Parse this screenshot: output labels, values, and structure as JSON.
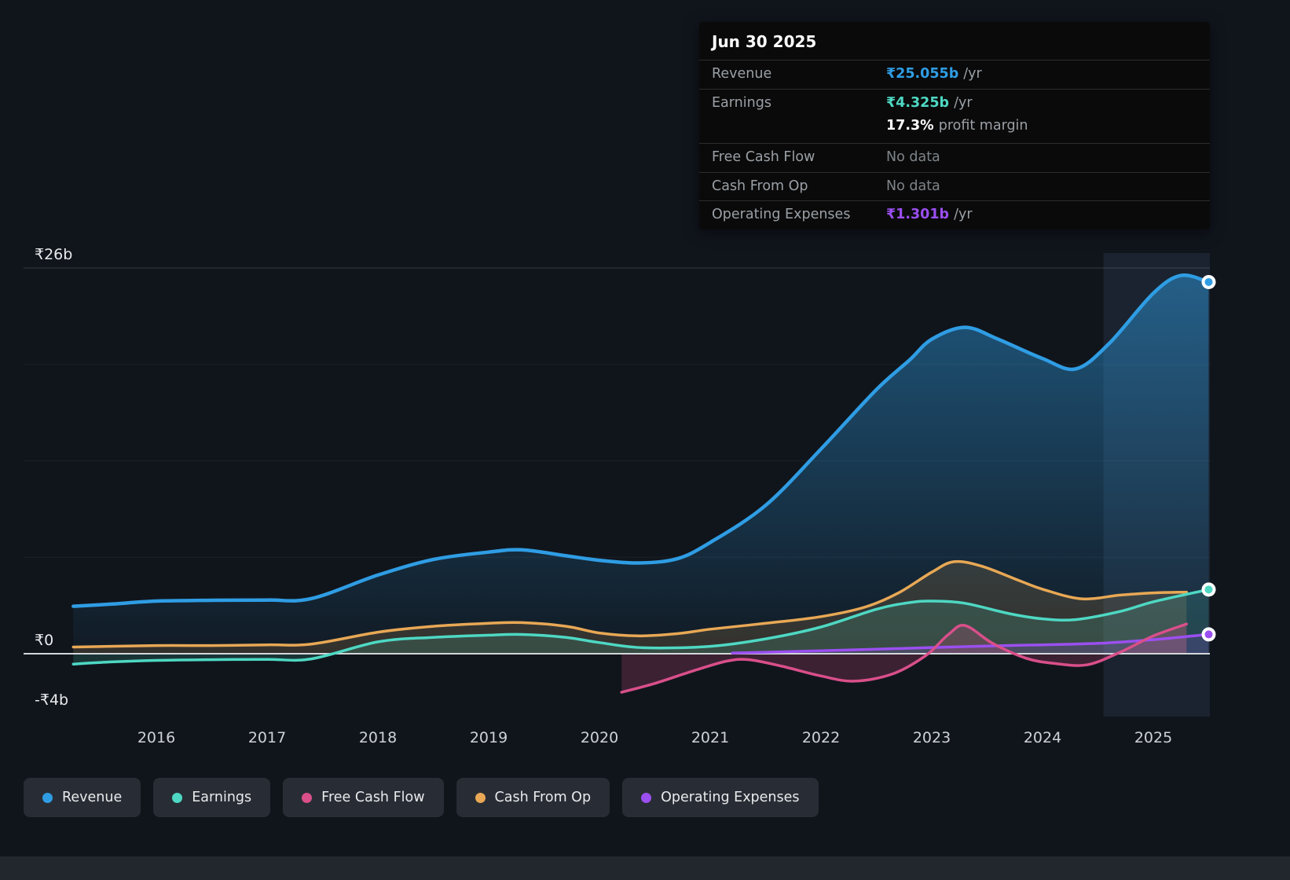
{
  "colors": {
    "revenue": "#2f9de4",
    "earnings": "#4ed8c3",
    "free_cash_flow": "#d94f8a",
    "cash_from_op": "#e8a855",
    "operating_expenses": "#9b4ff0",
    "white": "#ffffff",
    "muted": "#7e848a",
    "background": "#10151c",
    "zero_line": "#d2d6da",
    "grid_line": "rgba(255,255,255,0.16)"
  },
  "tooltip": {
    "date": "Jun 30 2025",
    "rows": [
      {
        "label": "Revenue",
        "value": "₹25.055b",
        "unit": "/yr",
        "color_key": "revenue",
        "sub": false
      },
      {
        "label": "Earnings",
        "value": "₹4.325b",
        "unit": "/yr",
        "color_key": "earnings",
        "sub": false
      },
      {
        "label": "",
        "value": "17.3%",
        "unit": "profit margin",
        "color_key": "white",
        "sub": true
      },
      {
        "label": "Free Cash Flow",
        "value": "No data",
        "unit": "",
        "color_key": "muted",
        "sub": false
      },
      {
        "label": "Cash From Op",
        "value": "No data",
        "unit": "",
        "color_key": "muted",
        "sub": false
      },
      {
        "label": "Operating Expenses",
        "value": "₹1.301b",
        "unit": "/yr",
        "color_key": "operating_expenses",
        "sub": false
      }
    ]
  },
  "legend": [
    {
      "label": "Revenue",
      "color_key": "revenue"
    },
    {
      "label": "Earnings",
      "color_key": "earnings"
    },
    {
      "label": "Free Cash Flow",
      "color_key": "free_cash_flow"
    },
    {
      "label": "Cash From Op",
      "color_key": "cash_from_op"
    },
    {
      "label": "Operating Expenses",
      "color_key": "operating_expenses"
    }
  ],
  "chart_data": {
    "type": "line",
    "title": "",
    "xlabel": "",
    "ylabel": "",
    "currency": "₹",
    "legend_position": "bottom",
    "grid": "horizontal",
    "x_ticks": [
      2016,
      2017,
      2018,
      2019,
      2020,
      2021,
      2022,
      2023,
      2024,
      2025
    ],
    "y_labels": [
      {
        "text": "₹26b",
        "value": 26
      },
      {
        "text": "₹0",
        "value": 0
      },
      {
        "text": "-₹4b",
        "value": -4
      }
    ],
    "y_gridlines_faint": [
      19.5,
      13,
      6.5
    ],
    "ylim": [
      -4.4,
      27.0
    ],
    "xlim": [
      2015.2,
      2025.55
    ],
    "forecast_band_start": 2024.55,
    "series": [
      {
        "name": "Revenue",
        "color_key": "revenue",
        "end_marker": true,
        "unit": "billions ₹/yr",
        "points": [
          [
            2015.25,
            3.2
          ],
          [
            2015.6,
            3.35
          ],
          [
            2016,
            3.55
          ],
          [
            2016.5,
            3.6
          ],
          [
            2017,
            3.62
          ],
          [
            2017.4,
            3.72
          ],
          [
            2018,
            5.3
          ],
          [
            2018.5,
            6.35
          ],
          [
            2019,
            6.85
          ],
          [
            2019.3,
            7.0
          ],
          [
            2019.7,
            6.6
          ],
          [
            2020,
            6.3
          ],
          [
            2020.35,
            6.12
          ],
          [
            2020.7,
            6.4
          ],
          [
            2021,
            7.5
          ],
          [
            2021.5,
            10.0
          ],
          [
            2022,
            13.8
          ],
          [
            2022.5,
            17.8
          ],
          [
            2022.8,
            19.8
          ],
          [
            2023,
            21.2
          ],
          [
            2023.3,
            22.0
          ],
          [
            2023.6,
            21.2
          ],
          [
            2024,
            19.9
          ],
          [
            2024.3,
            19.2
          ],
          [
            2024.6,
            20.9
          ],
          [
            2025,
            24.3
          ],
          [
            2025.25,
            25.5
          ],
          [
            2025.5,
            25.055
          ]
        ]
      },
      {
        "name": "Cash From Op",
        "color_key": "cash_from_op",
        "end_marker": false,
        "unit": "billions ₹/yr",
        "points": [
          [
            2015.25,
            0.45
          ],
          [
            2016,
            0.55
          ],
          [
            2016.5,
            0.55
          ],
          [
            2017,
            0.6
          ],
          [
            2017.4,
            0.65
          ],
          [
            2018,
            1.45
          ],
          [
            2018.5,
            1.85
          ],
          [
            2019,
            2.05
          ],
          [
            2019.3,
            2.1
          ],
          [
            2019.7,
            1.85
          ],
          [
            2020,
            1.4
          ],
          [
            2020.35,
            1.2
          ],
          [
            2020.7,
            1.35
          ],
          [
            2021,
            1.65
          ],
          [
            2021.5,
            2.05
          ],
          [
            2022,
            2.5
          ],
          [
            2022.4,
            3.15
          ],
          [
            2022.7,
            4.1
          ],
          [
            2023,
            5.5
          ],
          [
            2023.2,
            6.2
          ],
          [
            2023.45,
            5.9
          ],
          [
            2023.8,
            4.9
          ],
          [
            2024,
            4.35
          ],
          [
            2024.35,
            3.7
          ],
          [
            2024.7,
            3.95
          ],
          [
            2025,
            4.1
          ],
          [
            2025.3,
            4.15
          ]
        ]
      },
      {
        "name": "Earnings",
        "color_key": "earnings",
        "end_marker": true,
        "unit": "billions ₹/yr",
        "points": [
          [
            2015.25,
            -0.7
          ],
          [
            2015.6,
            -0.55
          ],
          [
            2016,
            -0.45
          ],
          [
            2016.5,
            -0.4
          ],
          [
            2017,
            -0.38
          ],
          [
            2017.4,
            -0.35
          ],
          [
            2018,
            0.8
          ],
          [
            2018.5,
            1.1
          ],
          [
            2019,
            1.25
          ],
          [
            2019.3,
            1.3
          ],
          [
            2019.7,
            1.1
          ],
          [
            2020,
            0.75
          ],
          [
            2020.4,
            0.4
          ],
          [
            2021,
            0.5
          ],
          [
            2021.5,
            1.0
          ],
          [
            2022,
            1.8
          ],
          [
            2022.5,
            3.0
          ],
          [
            2022.8,
            3.45
          ],
          [
            2023,
            3.55
          ],
          [
            2023.3,
            3.4
          ],
          [
            2023.7,
            2.7
          ],
          [
            2024,
            2.35
          ],
          [
            2024.3,
            2.3
          ],
          [
            2024.7,
            2.85
          ],
          [
            2025,
            3.5
          ],
          [
            2025.5,
            4.325
          ]
        ]
      },
      {
        "name": "Operating Expenses",
        "color_key": "operating_expenses",
        "end_marker": true,
        "unit": "billions ₹/yr",
        "points": [
          [
            2021.2,
            0.05
          ],
          [
            2021.5,
            0.1
          ],
          [
            2022,
            0.2
          ],
          [
            2022.5,
            0.3
          ],
          [
            2023,
            0.42
          ],
          [
            2023.5,
            0.52
          ],
          [
            2024,
            0.6
          ],
          [
            2024.5,
            0.7
          ],
          [
            2025,
            0.95
          ],
          [
            2025.5,
            1.301
          ]
        ]
      },
      {
        "name": "Free Cash Flow",
        "color_key": "free_cash_flow",
        "end_marker": false,
        "unit": "billions ₹/yr",
        "points": [
          [
            2020.2,
            -2.6
          ],
          [
            2020.5,
            -2.0
          ],
          [
            2020.85,
            -1.15
          ],
          [
            2021.15,
            -0.5
          ],
          [
            2021.35,
            -0.4
          ],
          [
            2021.65,
            -0.85
          ],
          [
            2022,
            -1.5
          ],
          [
            2022.3,
            -1.85
          ],
          [
            2022.65,
            -1.35
          ],
          [
            2022.95,
            -0.1
          ],
          [
            2023.15,
            1.3
          ],
          [
            2023.3,
            1.9
          ],
          [
            2023.55,
            0.7
          ],
          [
            2023.85,
            -0.3
          ],
          [
            2024.1,
            -0.65
          ],
          [
            2024.4,
            -0.75
          ],
          [
            2024.7,
            0.1
          ],
          [
            2025,
            1.2
          ],
          [
            2025.3,
            2.0
          ]
        ]
      }
    ]
  }
}
